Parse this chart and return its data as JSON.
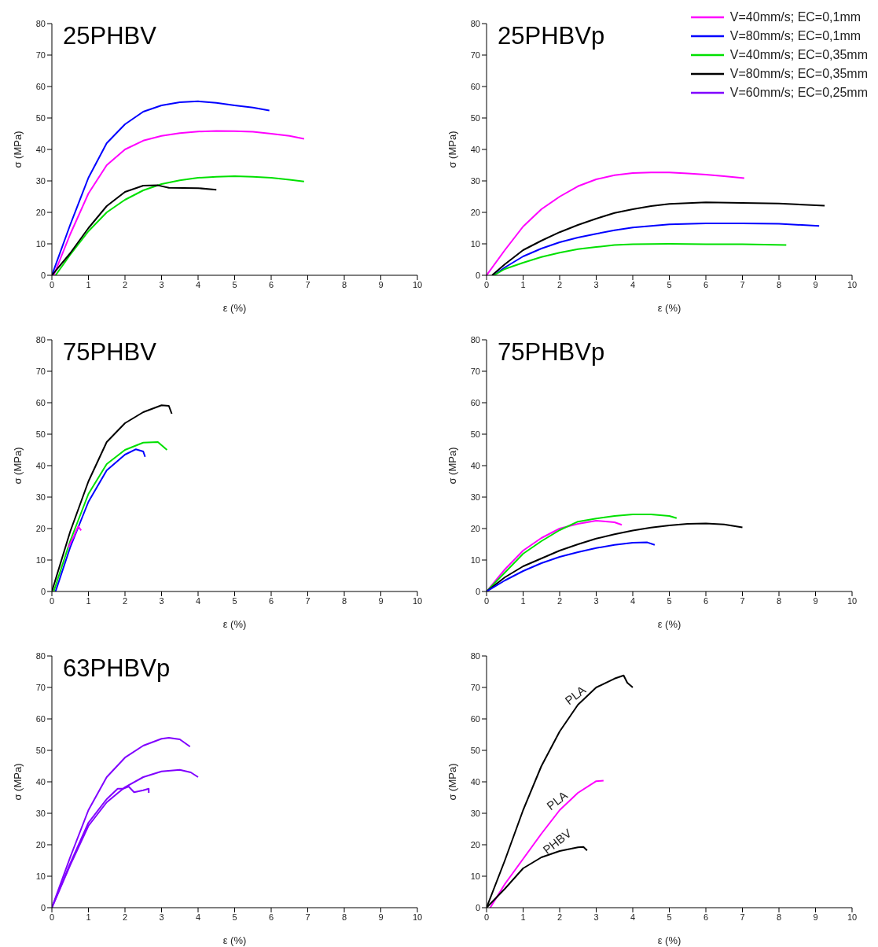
{
  "chart_data": [
    {
      "type": "line",
      "title": "25PHBV",
      "xlabel": "ε (%)",
      "ylabel": "σ (MPa)",
      "xlim": [
        0,
        10
      ],
      "ylim": [
        0,
        80
      ],
      "xticks": [
        0,
        1,
        2,
        3,
        4,
        5,
        6,
        7,
        8,
        9,
        10
      ],
      "yticks": [
        0,
        10,
        20,
        30,
        40,
        50,
        60,
        70,
        80
      ],
      "series": [
        {
          "color": "#0000ff",
          "x": [
            0,
            0.5,
            1,
            1.5,
            2,
            2.5,
            3,
            3.5,
            4,
            4.5,
            5,
            5.5,
            5.95
          ],
          "values": [
            0,
            16,
            31,
            42,
            48,
            52,
            54,
            55,
            55.3,
            54.8,
            54,
            53.3,
            52.4
          ]
        },
        {
          "color": "#ff00ff",
          "x": [
            0.05,
            0.5,
            1,
            1.5,
            2,
            2.5,
            3,
            3.5,
            4,
            4.5,
            5,
            5.5,
            6,
            6.5,
            6.9
          ],
          "values": [
            0,
            13,
            26,
            35,
            40,
            42.8,
            44.3,
            45.2,
            45.7,
            45.9,
            45.8,
            45.6,
            45,
            44.3,
            43.4
          ]
        },
        {
          "color": "#00e000",
          "x": [
            0.1,
            0.5,
            1,
            1.5,
            2,
            2.5,
            3,
            3.5,
            4,
            4.5,
            5,
            5.5,
            6,
            6.5,
            6.9
          ],
          "values": [
            0,
            6.5,
            14,
            20,
            24,
            27,
            29,
            30.2,
            31,
            31.3,
            31.5,
            31.3,
            31,
            30.4,
            29.8
          ]
        },
        {
          "color": "#000000",
          "x": [
            0,
            0.5,
            1,
            1.5,
            2,
            2.5,
            2.9,
            3.2,
            4,
            4.5
          ],
          "values": [
            0,
            7,
            15,
            22,
            26.5,
            28.5,
            28.6,
            27.8,
            27.7,
            27.2
          ]
        }
      ]
    },
    {
      "type": "line",
      "title": "25PHBVp",
      "xlabel": "ε (%)",
      "ylabel": "σ (MPa)",
      "xlim": [
        0,
        10
      ],
      "ylim": [
        0,
        80
      ],
      "xticks": [
        0,
        1,
        2,
        3,
        4,
        5,
        6,
        7,
        8,
        9,
        10
      ],
      "yticks": [
        0,
        10,
        20,
        30,
        40,
        50,
        60,
        70,
        80
      ],
      "legend": "top right",
      "series": [
        {
          "name": "V=40mm/s; EC=0,1mm",
          "color": "#ff00ff",
          "x": [
            0,
            0.5,
            1,
            1.5,
            2,
            2.5,
            3,
            3.5,
            4,
            4.5,
            5,
            5.5,
            6,
            6.5,
            7.05
          ],
          "values": [
            0,
            8,
            15.5,
            21,
            25,
            28.3,
            30.5,
            31.8,
            32.5,
            32.7,
            32.7,
            32.4,
            32,
            31.5,
            30.9
          ]
        },
        {
          "name": "V=80mm/s; EC=0,1mm",
          "color": "#0000ff",
          "x": [
            0.2,
            0.5,
            1,
            1.5,
            2,
            2.5,
            3,
            3.5,
            4,
            5,
            6,
            7,
            8,
            9.1
          ],
          "values": [
            0,
            2.5,
            6,
            8.5,
            10.5,
            12,
            13.2,
            14.3,
            15.2,
            16.2,
            16.5,
            16.5,
            16.4,
            15.7
          ]
        },
        {
          "name": "V=40mm/s; EC=0,35mm",
          "color": "#00e000",
          "x": [
            0.2,
            0.5,
            1,
            1.5,
            2,
            2.5,
            3,
            3.5,
            4,
            5,
            6,
            7,
            8.2
          ],
          "values": [
            0,
            2,
            4,
            5.8,
            7.2,
            8.3,
            9,
            9.6,
            9.9,
            10,
            9.9,
            9.9,
            9.6
          ]
        },
        {
          "name": "V=80mm/s; EC=0,35mm",
          "color": "#000000",
          "x": [
            0.15,
            0.5,
            1,
            1.5,
            2,
            2.5,
            3,
            3.5,
            4,
            4.5,
            5,
            6,
            7,
            8,
            9.25
          ],
          "values": [
            0,
            3.5,
            8,
            11,
            13.7,
            16,
            18,
            19.8,
            21,
            22,
            22.7,
            23.2,
            23,
            22.8,
            22.1
          ]
        }
      ]
    },
    {
      "type": "line",
      "title": "75PHBV",
      "xlabel": "ε (%)",
      "ylabel": "σ (MPa)",
      "xlim": [
        0,
        10
      ],
      "ylim": [
        0,
        80
      ],
      "xticks": [
        0,
        1,
        2,
        3,
        4,
        5,
        6,
        7,
        8,
        9,
        10
      ],
      "yticks": [
        0,
        10,
        20,
        30,
        40,
        50,
        60,
        70,
        80
      ],
      "series": [
        {
          "color": "#000000",
          "x": [
            0,
            0.5,
            1,
            1.5,
            2,
            2.5,
            3,
            3.2,
            3.28
          ],
          "values": [
            0,
            19,
            35,
            47.5,
            53.5,
            57,
            59.2,
            59,
            56.5
          ]
        },
        {
          "color": "#00e000",
          "x": [
            0.05,
            0.5,
            1,
            1.5,
            2,
            2.5,
            2.9,
            3.15
          ],
          "values": [
            0,
            16,
            31,
            40.5,
            45,
            47.3,
            47.5,
            45
          ]
        },
        {
          "color": "#0000ff",
          "x": [
            0.1,
            0.5,
            1,
            1.5,
            2,
            2.3,
            2.5,
            2.55
          ],
          "values": [
            0,
            14,
            28.5,
            38.5,
            43.5,
            45.2,
            44.5,
            42.8
          ]
        },
        {
          "color": "#ff00ff",
          "x": [
            0.45,
            0.6,
            0.72,
            0.8
          ],
          "values": [
            14,
            17.5,
            20.7,
            19.4
          ]
        }
      ]
    },
    {
      "type": "line",
      "title": "75PHBVp",
      "xlabel": "ε (%)",
      "ylabel": "σ (MPa)",
      "xlim": [
        0,
        10
      ],
      "ylim": [
        0,
        80
      ],
      "xticks": [
        0,
        1,
        2,
        3,
        4,
        5,
        6,
        7,
        8,
        9,
        10
      ],
      "yticks": [
        0,
        10,
        20,
        30,
        40,
        50,
        60,
        70,
        80
      ],
      "series": [
        {
          "color": "#ff00ff",
          "x": [
            0,
            0.5,
            1,
            1.5,
            2,
            2.5,
            3,
            3.5,
            3.7
          ],
          "values": [
            0,
            7,
            13,
            17,
            20,
            21.5,
            22.5,
            22,
            21.2
          ]
        },
        {
          "color": "#00e000",
          "x": [
            0,
            0.5,
            1,
            1.5,
            2,
            2.5,
            3,
            3.5,
            4,
            4.5,
            5,
            5.2
          ],
          "values": [
            0,
            6,
            12,
            16,
            19.5,
            22.2,
            23.2,
            24,
            24.5,
            24.5,
            24,
            23.3
          ]
        },
        {
          "color": "#000000",
          "x": [
            0,
            0.5,
            1,
            1.5,
            2,
            2.5,
            3,
            3.5,
            4,
            4.5,
            5,
            5.5,
            6,
            6.5,
            7
          ],
          "values": [
            0,
            4.5,
            8,
            10.5,
            13,
            15,
            16.8,
            18.2,
            19.4,
            20.3,
            21,
            21.5,
            21.6,
            21.3,
            20.4
          ]
        },
        {
          "color": "#0000ff",
          "x": [
            0,
            0.5,
            1,
            1.5,
            2,
            2.5,
            3,
            3.5,
            4,
            4.4,
            4.6
          ],
          "values": [
            0,
            3.5,
            6.5,
            9,
            11,
            12.5,
            13.8,
            14.8,
            15.5,
            15.6,
            14.8
          ]
        }
      ]
    },
    {
      "type": "line",
      "title": "63PHBVp",
      "xlabel": "ε (%)",
      "ylabel": "σ (MPa)",
      "xlim": [
        0,
        10
      ],
      "ylim": [
        0,
        80
      ],
      "xticks": [
        0,
        1,
        2,
        3,
        4,
        5,
        6,
        7,
        8,
        9,
        10
      ],
      "yticks": [
        0,
        10,
        20,
        30,
        40,
        50,
        60,
        70,
        80
      ],
      "series": [
        {
          "name": "V=60mm/s; EC=0,25mm",
          "color": "#8000ff",
          "x": [
            0,
            0.5,
            1,
            1.5,
            2,
            2.5,
            3,
            3.2,
            3.5,
            3.78
          ],
          "values": [
            0,
            16,
            31,
            41.5,
            47.7,
            51.5,
            53.7,
            54,
            53.5,
            51.2
          ]
        },
        {
          "color": "#8000ff",
          "x": [
            0,
            0.5,
            1,
            1.5,
            2,
            2.5,
            3,
            3.5,
            3.8,
            4
          ],
          "values": [
            0,
            13.5,
            26,
            33.5,
            38.3,
            41.5,
            43.3,
            43.8,
            43,
            41.5
          ]
        },
        {
          "color": "#8000ff",
          "x": [
            0,
            0.5,
            1,
            1.5,
            1.8,
            1.95,
            2.1,
            2.25,
            2.5,
            2.65,
            2.65
          ],
          "values": [
            0,
            14,
            27,
            34.5,
            37.8,
            37.8,
            38.5,
            36.7,
            37.3,
            37.8,
            36.5
          ]
        }
      ]
    },
    {
      "type": "line",
      "xlabel": "ε (%)",
      "ylabel": "σ (MPa)",
      "xlim": [
        0,
        10
      ],
      "ylim": [
        0,
        80
      ],
      "xticks": [
        0,
        1,
        2,
        3,
        4,
        5,
        6,
        7,
        8,
        9,
        10
      ],
      "yticks": [
        0,
        10,
        20,
        30,
        40,
        50,
        60,
        70,
        80
      ],
      "series": [
        {
          "name": "PLA",
          "color": "#000000",
          "x": [
            0,
            0.5,
            1,
            1.5,
            2,
            2.5,
            3,
            3.5,
            3.75,
            3.85,
            4
          ],
          "values": [
            0,
            15,
            31,
            45,
            56,
            64.5,
            70,
            72.8,
            73.8,
            71.5,
            70
          ]
        },
        {
          "name": "PLA",
          "color": "#ff00ff",
          "x": [
            0.1,
            0.5,
            1,
            1.5,
            2,
            2.5,
            3,
            3.2
          ],
          "values": [
            0,
            7.5,
            15.5,
            23.5,
            31,
            36.5,
            40.2,
            40.4
          ]
        },
        {
          "name": "PHBV",
          "color": "#000000",
          "x": [
            0,
            0.5,
            1,
            1.5,
            2,
            2.5,
            2.65,
            2.75
          ],
          "values": [
            0,
            6,
            12.5,
            16,
            18,
            19.2,
            19.3,
            18.2
          ]
        }
      ]
    }
  ]
}
